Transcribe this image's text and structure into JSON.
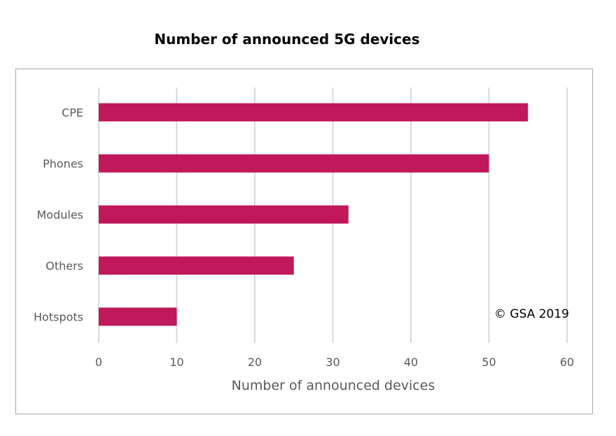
{
  "chart_data": {
    "type": "bar",
    "orientation": "horizontal",
    "title": "Number of announced 5G devices",
    "categories": [
      "CPE",
      "Phones",
      "Modules",
      "Others",
      "Hotspots"
    ],
    "values": [
      55,
      50,
      32,
      25,
      10
    ],
    "xlabel": "Number of announced devices",
    "ylabel": "",
    "xlim": [
      0,
      60
    ],
    "xticks": [
      "0",
      "10",
      "20",
      "30",
      "40",
      "50",
      "60"
    ],
    "grid": "vertical",
    "bar_color": "#c0185a",
    "annotation": "© GSA 2019"
  }
}
